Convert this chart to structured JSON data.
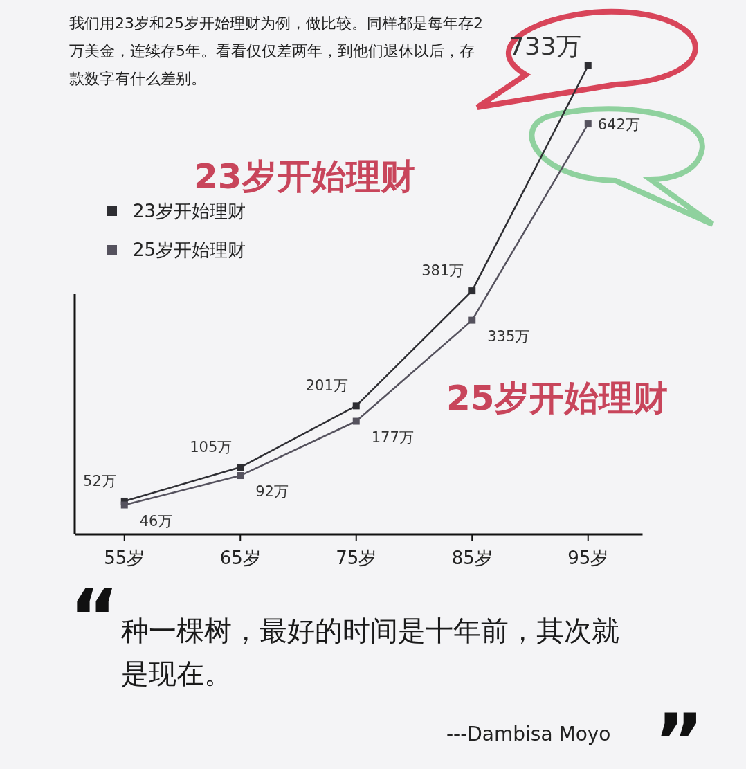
{
  "chart_data": {
    "type": "line",
    "subtitle": "我们用23岁和25岁开始理财为例，做比较。同样都是每年存2万美金，连续存5年。看看仅仅差两年，到他们退休以后，存款数字有什么差别。",
    "categories": [
      "55岁",
      "65岁",
      "75岁",
      "85岁",
      "95岁"
    ],
    "series": [
      {
        "name": "23岁开始理财",
        "color": "#2e2e33",
        "values": [
          52,
          105,
          201,
          381,
          733
        ],
        "value_labels": [
          "52万",
          "105万",
          "201万",
          "381万",
          "733万"
        ]
      },
      {
        "name": "25岁开始理财",
        "color": "#55525e",
        "values": [
          46,
          92,
          177,
          335,
          642
        ],
        "value_labels": [
          "46万",
          "92万",
          "177万",
          "335万",
          "642万"
        ]
      }
    ],
    "legend": "top left",
    "marker": "square",
    "annotations": [
      "23岁开始理财",
      "25岁开始理财",
      "种一棵树，最好的时间是十年前，其次就是现在。",
      "---Dambisa Moyo",
      "“",
      "”"
    ]
  }
}
